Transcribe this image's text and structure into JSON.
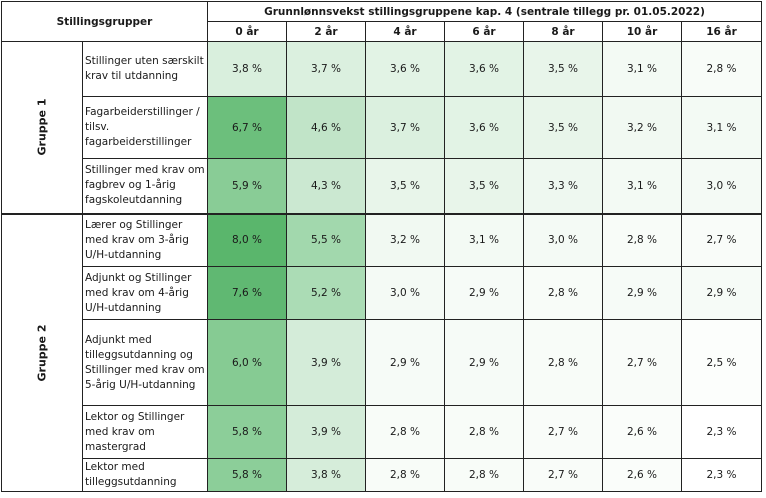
{
  "table": {
    "corner_label": "Stillingsgrupper",
    "title": "Grunnlønnsvekst stillingsgruppene kap. 4 (sentrale tillegg pr. 01.05.2022)",
    "years": [
      "0 år",
      "2 år",
      "4 år",
      "6 år",
      "8 år",
      "10 år",
      "16 år"
    ],
    "groups": [
      {
        "label": "Gruppe 1",
        "rows": [
          {
            "desc": "Stillinger uten særskilt krav til utdanning",
            "values": [
              "3,8 %",
              "3,7 %",
              "3,6 %",
              "3,6 %",
              "3,5 %",
              "3,1 %",
              "2,8 %"
            ],
            "colors": [
              "#d9efdd",
              "#dbf0df",
              "#e2f3e5",
              "#e2f3e5",
              "#e8f5ea",
              "#f3faf4",
              "#f8fcf8"
            ]
          },
          {
            "desc": "Fagarbeiderstillinger / tilsv. fagarbeiderstillinger",
            "values": [
              "6,7 %",
              "4,6 %",
              "3,7 %",
              "3,6 %",
              "3,5 %",
              "3,2 %",
              "3,1 %"
            ],
            "colors": [
              "#6cbf7c",
              "#c1e4c8",
              "#dbf0df",
              "#e2f3e5",
              "#e8f5ea",
              "#f1f9f2",
              "#f3faf4"
            ]
          },
          {
            "desc": "Stillinger med krav om fagbrev og 1-årig fagskoleutdanning",
            "values": [
              "5,9 %",
              "4,3 %",
              "3,5 %",
              "3,5 %",
              "3,3 %",
              "3,1 %",
              "3,0 %"
            ],
            "colors": [
              "#89cc96",
              "#cbe8d1",
              "#e8f5ea",
              "#e8f5ea",
              "#eef8f0",
              "#f3faf4",
              "#f4faf5"
            ]
          }
        ]
      },
      {
        "label": "Gruppe 2",
        "rows": [
          {
            "desc": "Lærer og Stillinger med krav om 3-årig U/H-utdanning",
            "values": [
              "8,0 %",
              "5,5 %",
              "3,2 %",
              "3,1 %",
              "3,0 %",
              "2,8 %",
              "2,7 %"
            ],
            "colors": [
              "#5ab66c",
              "#a2d8ad",
              "#f1f9f2",
              "#f3faf4",
              "#f4faf5",
              "#f8fcf8",
              "#f9fcf9"
            ]
          },
          {
            "desc": "Adjunkt og Stillinger med krav om 4-årig U/H-utdanning",
            "values": [
              "7,6 %",
              "5,2 %",
              "3,0 %",
              "2,9 %",
              "2,8 %",
              "2,9 %",
              "2,9 %"
            ],
            "colors": [
              "#60b872",
              "#abdcb5",
              "#f4faf5",
              "#f6fbf7",
              "#f8fcf8",
              "#f6fbf7",
              "#f6fbf7"
            ]
          },
          {
            "desc": "Adjunkt med tilleggsutdanning og Stillinger med krav om 5-årig U/H-utdanning",
            "values": [
              "6,0 %",
              "3,9 %",
              "2,9 %",
              "2,9 %",
              "2,8 %",
              "2,7 %",
              "2,5 %"
            ],
            "colors": [
              "#86cb93",
              "#d4ecd9",
              "#f6fbf7",
              "#f6fbf7",
              "#f8fcf8",
              "#f9fcf9",
              "#fcfefc"
            ]
          },
          {
            "desc": "Lektor og Stillinger med krav om mastergrad",
            "values": [
              "5,8 %",
              "3,9 %",
              "2,8 %",
              "2,8 %",
              "2,7 %",
              "2,6 %",
              "2,3 %"
            ],
            "colors": [
              "#8cce99",
              "#d4ecd9",
              "#f8fcf8",
              "#f8fcf8",
              "#f9fcf9",
              "#fafdfa",
              "#ffffff"
            ]
          },
          {
            "desc": "Lektor med tilleggsutdanning",
            "values": [
              "5,8 %",
              "3,8 %",
              "2,8 %",
              "2,8 %",
              "2,7 %",
              "2,6 %",
              "2,3 %"
            ],
            "colors": [
              "#8cce99",
              "#d6edda",
              "#f8fcf8",
              "#f8fcf8",
              "#f9fcf9",
              "#fafdfa",
              "#ffffff"
            ]
          }
        ]
      }
    ]
  }
}
